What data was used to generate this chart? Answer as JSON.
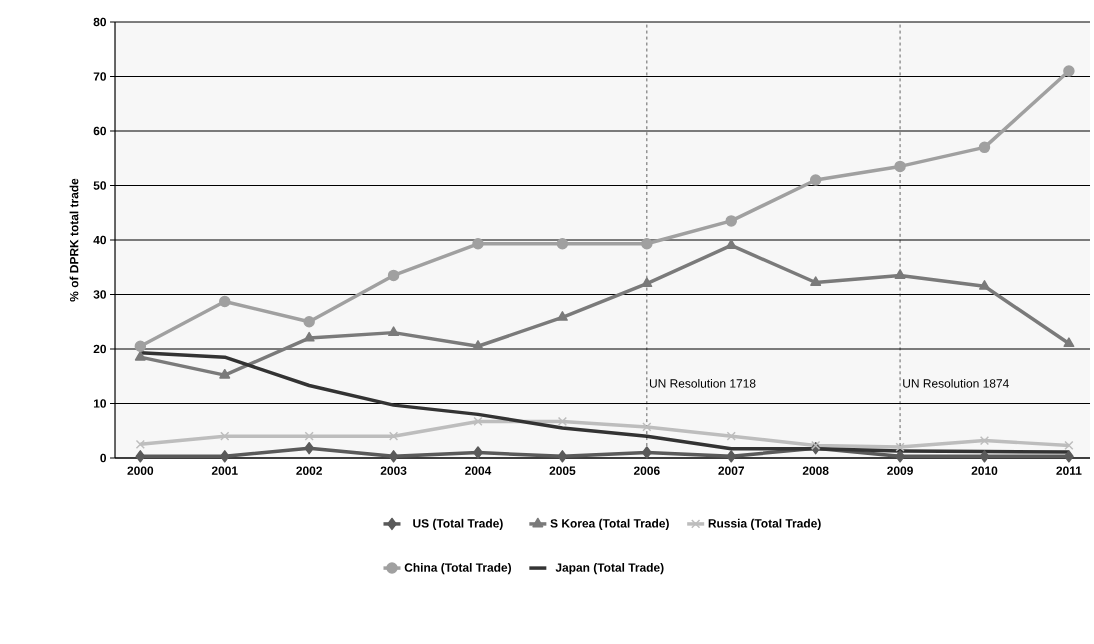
{
  "chart_data": {
    "type": "line",
    "ylabel": "% of DPRK total trade",
    "x": [
      2000,
      2001,
      2002,
      2003,
      2004,
      2005,
      2006,
      2007,
      2008,
      2009,
      2010,
      2011
    ],
    "xlim": [
      1999.7,
      2011.25
    ],
    "xticks": [
      2000,
      2001,
      2002,
      2003,
      2004,
      2005,
      2006,
      2007,
      2008,
      2009,
      2010,
      2011
    ],
    "ylim": [
      0,
      80
    ],
    "yticks": [
      0,
      10,
      20,
      30,
      40,
      50,
      60,
      70,
      80
    ],
    "grid": "y",
    "legend": "bottom",
    "line_style": "solid",
    "series": [
      {
        "name": "US (Total Trade)",
        "color": "#5a5a5a",
        "marker": "diamond",
        "values": [
          0.3,
          0.3,
          1.8,
          0.3,
          1,
          0.3,
          1,
          0.3,
          1.8,
          0.3,
          0.3,
          0.3
        ]
      },
      {
        "name": "S Korea (Total Trade)",
        "color": "#7a7a7a",
        "marker": "triangle",
        "values": [
          18.5,
          15.2,
          22,
          23,
          20.5,
          25.8,
          32,
          39,
          32.2,
          33.5,
          31.5,
          21
        ]
      },
      {
        "name": "Russia (Total Trade)",
        "color": "#bdbdbd",
        "marker": "cross",
        "values": [
          2.5,
          4,
          4,
          4,
          6.7,
          6.7,
          5.7,
          4,
          2.3,
          2,
          3.2,
          2.3
        ]
      },
      {
        "name": "China (Total Trade)",
        "color": "#a0a0a0",
        "marker": "circle",
        "values": [
          20.5,
          28.7,
          25,
          33.5,
          39.3,
          39.3,
          39.3,
          43.5,
          51,
          53.5,
          57,
          71
        ]
      },
      {
        "name": "Japan (Total Trade)",
        "color": "#333333",
        "marker": "none",
        "values": [
          19.3,
          18.5,
          13.3,
          9.7,
          8,
          5.5,
          4,
          1.7,
          1.7,
          1.3,
          1.2,
          1.1
        ]
      }
    ],
    "ref_lines": [
      {
        "axis": "x",
        "value": 2006,
        "label": "UN Resolution 1718",
        "line_style": "dashed"
      },
      {
        "axis": "x",
        "value": 2009,
        "label": "UN Resolution 1874",
        "line_style": "dashed"
      }
    ]
  }
}
